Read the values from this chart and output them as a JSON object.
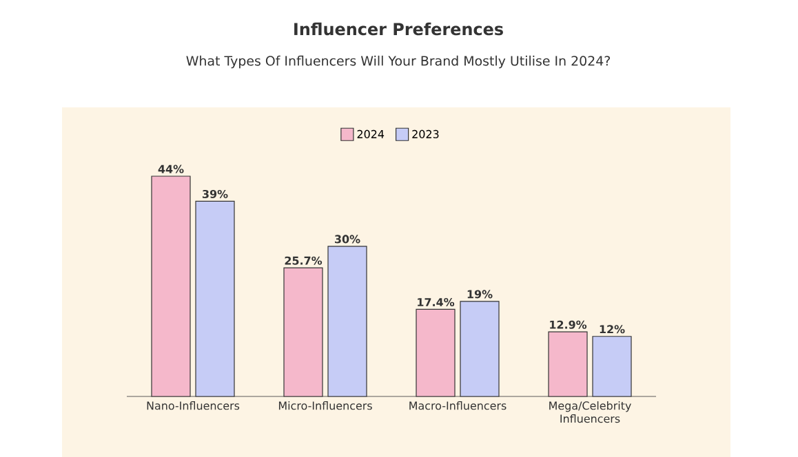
{
  "chart_data": {
    "type": "bar",
    "title": "Influencer Preferences",
    "subtitle": "What Types Of Influencers Will Your Brand Mostly Utilise In 2024?",
    "categories": [
      "Nano-Influencers",
      "Micro-Influencers",
      "Macro-Influencers",
      "Mega/Celebrity Influencers"
    ],
    "series": [
      {
        "name": "2024",
        "color": "#f5b8cb",
        "values": [
          44,
          25.7,
          17.4,
          12.9
        ],
        "value_labels": [
          "44%",
          "25.7%",
          "17.4%",
          "12.9%"
        ]
      },
      {
        "name": "2023",
        "color": "#c6ccf6",
        "values": [
          39,
          30,
          19,
          12
        ],
        "value_labels": [
          "39%",
          "30%",
          "19%",
          "12%"
        ]
      }
    ],
    "legend": "top"
  }
}
